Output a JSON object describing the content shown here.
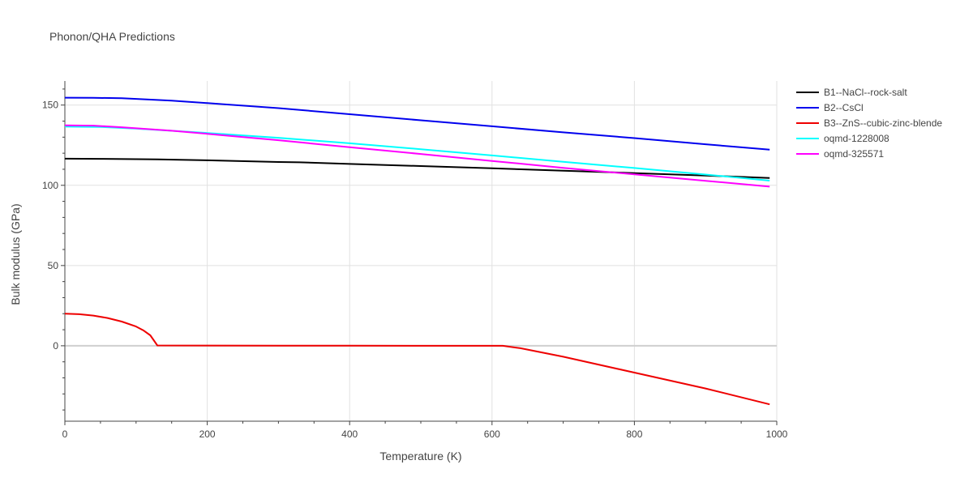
{
  "chart_data": {
    "type": "line",
    "title": "Phonon/QHA Predictions",
    "xlabel": "Temperature (K)",
    "ylabel": "Bulk modulus (GPa)",
    "xlim": [
      0,
      1000
    ],
    "ylim": [
      -47,
      165
    ],
    "xticks": [
      0,
      200,
      400,
      600,
      800,
      1000
    ],
    "yticks": [
      0,
      50,
      100,
      150
    ],
    "x_tick_labels": [
      "0",
      "200",
      "400",
      "600",
      "800",
      "1000"
    ],
    "y_tick_labels": [
      "0",
      "50",
      "100",
      "150"
    ],
    "grid": true,
    "legend_position": "right",
    "series": [
      {
        "name": "B1--NaCl--rock-salt",
        "color": "#000000",
        "points": [
          [
            0,
            116.6
          ],
          [
            50,
            116.5
          ],
          [
            100,
            116.3
          ],
          [
            130,
            116.2
          ],
          [
            200,
            115.6
          ],
          [
            300,
            114.5
          ],
          [
            330,
            114.3
          ],
          [
            400,
            113.3
          ],
          [
            500,
            112.0
          ],
          [
            600,
            110.6
          ],
          [
            700,
            109.1
          ],
          [
            800,
            107.6
          ],
          [
            900,
            106.1
          ],
          [
            990,
            104.6
          ]
        ]
      },
      {
        "name": "B2--CsCl",
        "color": "#0000ee",
        "points": [
          [
            0,
            154.6
          ],
          [
            40,
            154.5
          ],
          [
            80,
            154.3
          ],
          [
            150,
            152.8
          ],
          [
            200,
            151.2
          ],
          [
            300,
            148.1
          ],
          [
            400,
            144.3
          ],
          [
            500,
            140.5
          ],
          [
            600,
            136.8
          ],
          [
            700,
            133.0
          ],
          [
            800,
            129.4
          ],
          [
            900,
            125.6
          ],
          [
            990,
            122.2
          ]
        ]
      },
      {
        "name": "B3--ZnS--cubic-zinc-blende",
        "color": "#ee0000",
        "points": [
          [
            0,
            20.0
          ],
          [
            20,
            19.7
          ],
          [
            40,
            18.8
          ],
          [
            60,
            17.3
          ],
          [
            80,
            15.1
          ],
          [
            100,
            12.0
          ],
          [
            110,
            9.7
          ],
          [
            120,
            6.5
          ],
          [
            130,
            0.2
          ],
          [
            200,
            0.15
          ],
          [
            300,
            0.1
          ],
          [
            400,
            0.05
          ],
          [
            500,
            0.0
          ],
          [
            600,
            0.0
          ],
          [
            615,
            0.0
          ],
          [
            640,
            -1.5
          ],
          [
            700,
            -6.8
          ],
          [
            800,
            -16.7
          ],
          [
            900,
            -26.6
          ],
          [
            990,
            -36.5
          ]
        ]
      },
      {
        "name": "oqmd-1228008",
        "color": "#00ffff",
        "points": [
          [
            0,
            136.6
          ],
          [
            50,
            136.4
          ],
          [
            100,
            135.3
          ],
          [
            200,
            132.6
          ],
          [
            300,
            129.6
          ],
          [
            400,
            126.2
          ],
          [
            500,
            122.5
          ],
          [
            600,
            118.6
          ],
          [
            700,
            114.7
          ],
          [
            800,
            110.8
          ],
          [
            900,
            106.7
          ],
          [
            990,
            102.9
          ]
        ]
      },
      {
        "name": "oqmd-325571",
        "color": "#ff00ff",
        "points": [
          [
            0,
            137.4
          ],
          [
            40,
            137.2
          ],
          [
            80,
            136.2
          ],
          [
            150,
            134.0
          ],
          [
            200,
            132.1
          ],
          [
            300,
            128.1
          ],
          [
            400,
            123.7
          ],
          [
            500,
            119.5
          ],
          [
            600,
            115.2
          ],
          [
            700,
            110.9
          ],
          [
            800,
            106.8
          ],
          [
            900,
            102.8
          ],
          [
            990,
            99.2
          ]
        ]
      }
    ]
  }
}
